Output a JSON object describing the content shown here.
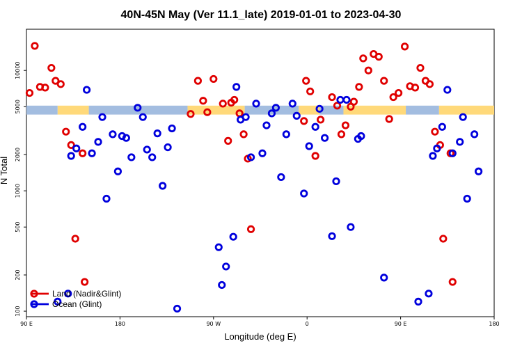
{
  "chart_data": {
    "type": "scatter",
    "title": "40N-45N May (Ver 11.1_late)   2019-01-01 to 2023-04-30",
    "xlabel": "Longitude (deg E)",
    "ylabel": "N Total",
    "x_ticks": [
      {
        "value": 90,
        "label": "90 E"
      },
      {
        "value": 180,
        "label": "180"
      },
      {
        "value": 270,
        "label": "90 W"
      },
      {
        "value": 360,
        "label": "0"
      },
      {
        "value": 450,
        "label": "90 E"
      },
      {
        "value": 540,
        "label": "180"
      }
    ],
    "y_ticks": [
      {
        "value": 100,
        "label": "100"
      },
      {
        "value": 200,
        "label": "200"
      },
      {
        "value": 500,
        "label": "500"
      },
      {
        "value": 1000,
        "label": "1000"
      },
      {
        "value": 2000,
        "label": "2000"
      },
      {
        "value": 5000,
        "label": "5000"
      },
      {
        "value": 10000,
        "label": "10000"
      }
    ],
    "xlim": [
      90,
      540
    ],
    "ylim": [
      90,
      22000
    ],
    "log_y": true,
    "grid": false,
    "legend_position": "bottom-left",
    "band": {
      "y_low": 4300,
      "y_high": 5100,
      "colors": {
        "land": "#ffd97a",
        "ocean": "#a3bde0"
      }
    },
    "series": [
      {
        "name": "Land (Nadir&Glint)",
        "color": "#e00000",
        "points": [
          [
            93,
            6500
          ],
          [
            98,
            16000
          ],
          [
            103,
            7300
          ],
          [
            108,
            7200
          ],
          [
            114,
            10500
          ],
          [
            118,
            8200
          ],
          [
            123,
            7700
          ],
          [
            128,
            3100
          ],
          [
            133,
            2400
          ],
          [
            137,
            400
          ],
          [
            144,
            2050
          ],
          [
            146,
            175
          ],
          [
            248,
            4350
          ],
          [
            255,
            8200
          ],
          [
            260,
            5600
          ],
          [
            264,
            4500
          ],
          [
            270,
            8500
          ],
          [
            279,
            5300
          ],
          [
            284,
            2600
          ],
          [
            287,
            5400
          ],
          [
            290,
            5700
          ],
          [
            295,
            4400
          ],
          [
            299,
            2950
          ],
          [
            303,
            1850
          ],
          [
            306,
            480
          ],
          [
            357,
            3800
          ],
          [
            359,
            8200
          ],
          [
            363,
            6700
          ],
          [
            368,
            1950
          ],
          [
            373,
            3900
          ],
          [
            384,
            6000
          ],
          [
            389,
            5100
          ],
          [
            393,
            2950
          ],
          [
            397,
            3500
          ],
          [
            402,
            5000
          ],
          [
            405,
            5500
          ],
          [
            410,
            7300
          ],
          [
            414,
            12600
          ],
          [
            419,
            10000
          ],
          [
            424,
            13700
          ],
          [
            429,
            13000
          ],
          [
            434,
            8200
          ],
          [
            439,
            3950
          ],
          [
            443,
            6000
          ],
          [
            448,
            6500
          ],
          [
            454,
            15800
          ],
          [
            459,
            7400
          ],
          [
            464,
            7200
          ],
          [
            469,
            10500
          ],
          [
            474,
            8200
          ],
          [
            478,
            7700
          ],
          [
            483,
            3100
          ],
          [
            488,
            2400
          ],
          [
            491,
            400
          ],
          [
            498,
            2050
          ],
          [
            500,
            175
          ]
        ]
      },
      {
        "name": "Ocean (Glint)",
        "color": "#0000dd",
        "points": [
          [
            120,
            120
          ],
          [
            130,
            140
          ],
          [
            133,
            1950
          ],
          [
            138,
            2250
          ],
          [
            144,
            3400
          ],
          [
            148,
            6900
          ],
          [
            153,
            2050
          ],
          [
            159,
            2550
          ],
          [
            163,
            4100
          ],
          [
            167,
            860
          ],
          [
            173,
            2950
          ],
          [
            178,
            1450
          ],
          [
            182,
            2850
          ],
          [
            186,
            2750
          ],
          [
            191,
            1900
          ],
          [
            197,
            4900
          ],
          [
            202,
            4100
          ],
          [
            206,
            2200
          ],
          [
            211,
            1900
          ],
          [
            216,
            3000
          ],
          [
            221,
            1100
          ],
          [
            226,
            2300
          ],
          [
            230,
            3300
          ],
          [
            235,
            105
          ],
          [
            275,
            340
          ],
          [
            278,
            165
          ],
          [
            282,
            235
          ],
          [
            289,
            415
          ],
          [
            292,
            7300
          ],
          [
            296,
            3900
          ],
          [
            301,
            4100
          ],
          [
            306,
            1900
          ],
          [
            311,
            5300
          ],
          [
            317,
            2050
          ],
          [
            321,
            3500
          ],
          [
            326,
            4400
          ],
          [
            330,
            4900
          ],
          [
            335,
            1300
          ],
          [
            340,
            2950
          ],
          [
            346,
            5300
          ],
          [
            350,
            4200
          ],
          [
            357,
            950
          ],
          [
            362,
            2350
          ],
          [
            368,
            3400
          ],
          [
            372,
            4800
          ],
          [
            377,
            2750
          ],
          [
            384,
            420
          ],
          [
            388,
            1200
          ],
          [
            392,
            5700
          ],
          [
            398,
            5700
          ],
          [
            402,
            500
          ],
          [
            409,
            2700
          ],
          [
            412,
            2850
          ],
          [
            434,
            190
          ],
          [
            467,
            120
          ],
          [
            477,
            140
          ],
          [
            481,
            1950
          ],
          [
            485,
            2250
          ],
          [
            490,
            3400
          ],
          [
            495,
            6900
          ],
          [
            500,
            2050
          ],
          [
            507,
            2550
          ],
          [
            510,
            4100
          ],
          [
            514,
            860
          ],
          [
            521,
            2950
          ],
          [
            525,
            1450
          ]
        ]
      }
    ]
  }
}
